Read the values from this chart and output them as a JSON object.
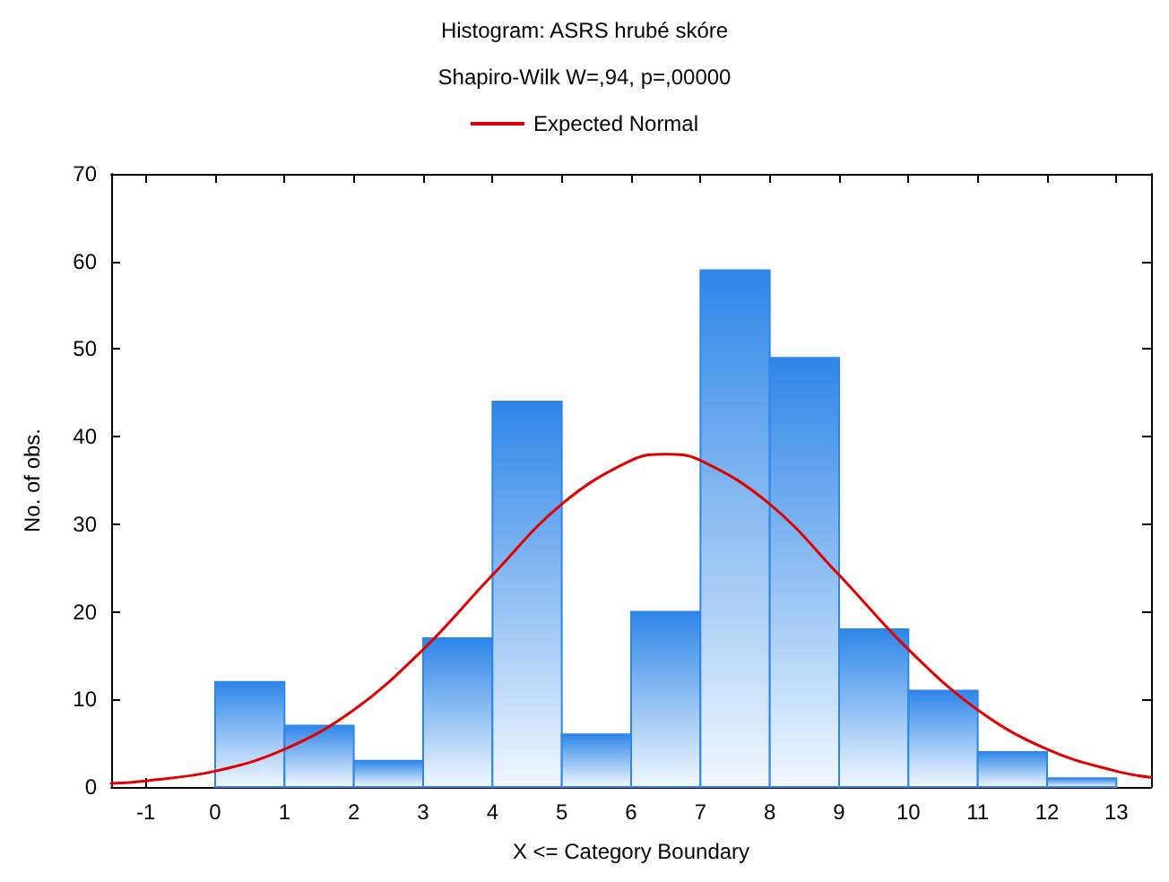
{
  "chart_data": {
    "type": "histogram",
    "title": "Histogram: ASRS hrubé skóre",
    "subtitle": "Shapiro-Wilk W=,94, p=,00000",
    "xlabel": "X <= Category Boundary",
    "ylabel": "No. of obs.",
    "bins": [
      0,
      1,
      2,
      3,
      4,
      5,
      6,
      7,
      8,
      9,
      10,
      11,
      12,
      13
    ],
    "values": [
      12,
      7,
      3,
      17,
      44,
      6,
      20,
      59,
      49,
      18,
      11,
      4,
      1
    ],
    "color": "#2e86e8",
    "series": [
      {
        "name": "Expected Normal",
        "type": "line",
        "color": "#e00000",
        "x": [
          -1.5,
          -1,
          0,
          1,
          2,
          3,
          4,
          5,
          6,
          6.5,
          7,
          8,
          9,
          10,
          11,
          12,
          13,
          13.5
        ],
        "values": [
          0.4,
          0.7,
          1.8,
          4.3,
          8.8,
          15.7,
          24.2,
          32.3,
          37.3,
          38,
          37.3,
          32.3,
          24.2,
          15.7,
          8.8,
          4.3,
          1.8,
          1.1
        ]
      }
    ],
    "xlim": [
      -1.5,
      13.5
    ],
    "xticks": [
      -1,
      0,
      1,
      2,
      3,
      4,
      5,
      6,
      7,
      8,
      9,
      10,
      11,
      12,
      13
    ],
    "ylim": [
      0,
      70
    ],
    "yticks": [
      0,
      10,
      20,
      30,
      40,
      50,
      60,
      70
    ],
    "legend": "top",
    "marker": "none",
    "line_style": "solid"
  }
}
